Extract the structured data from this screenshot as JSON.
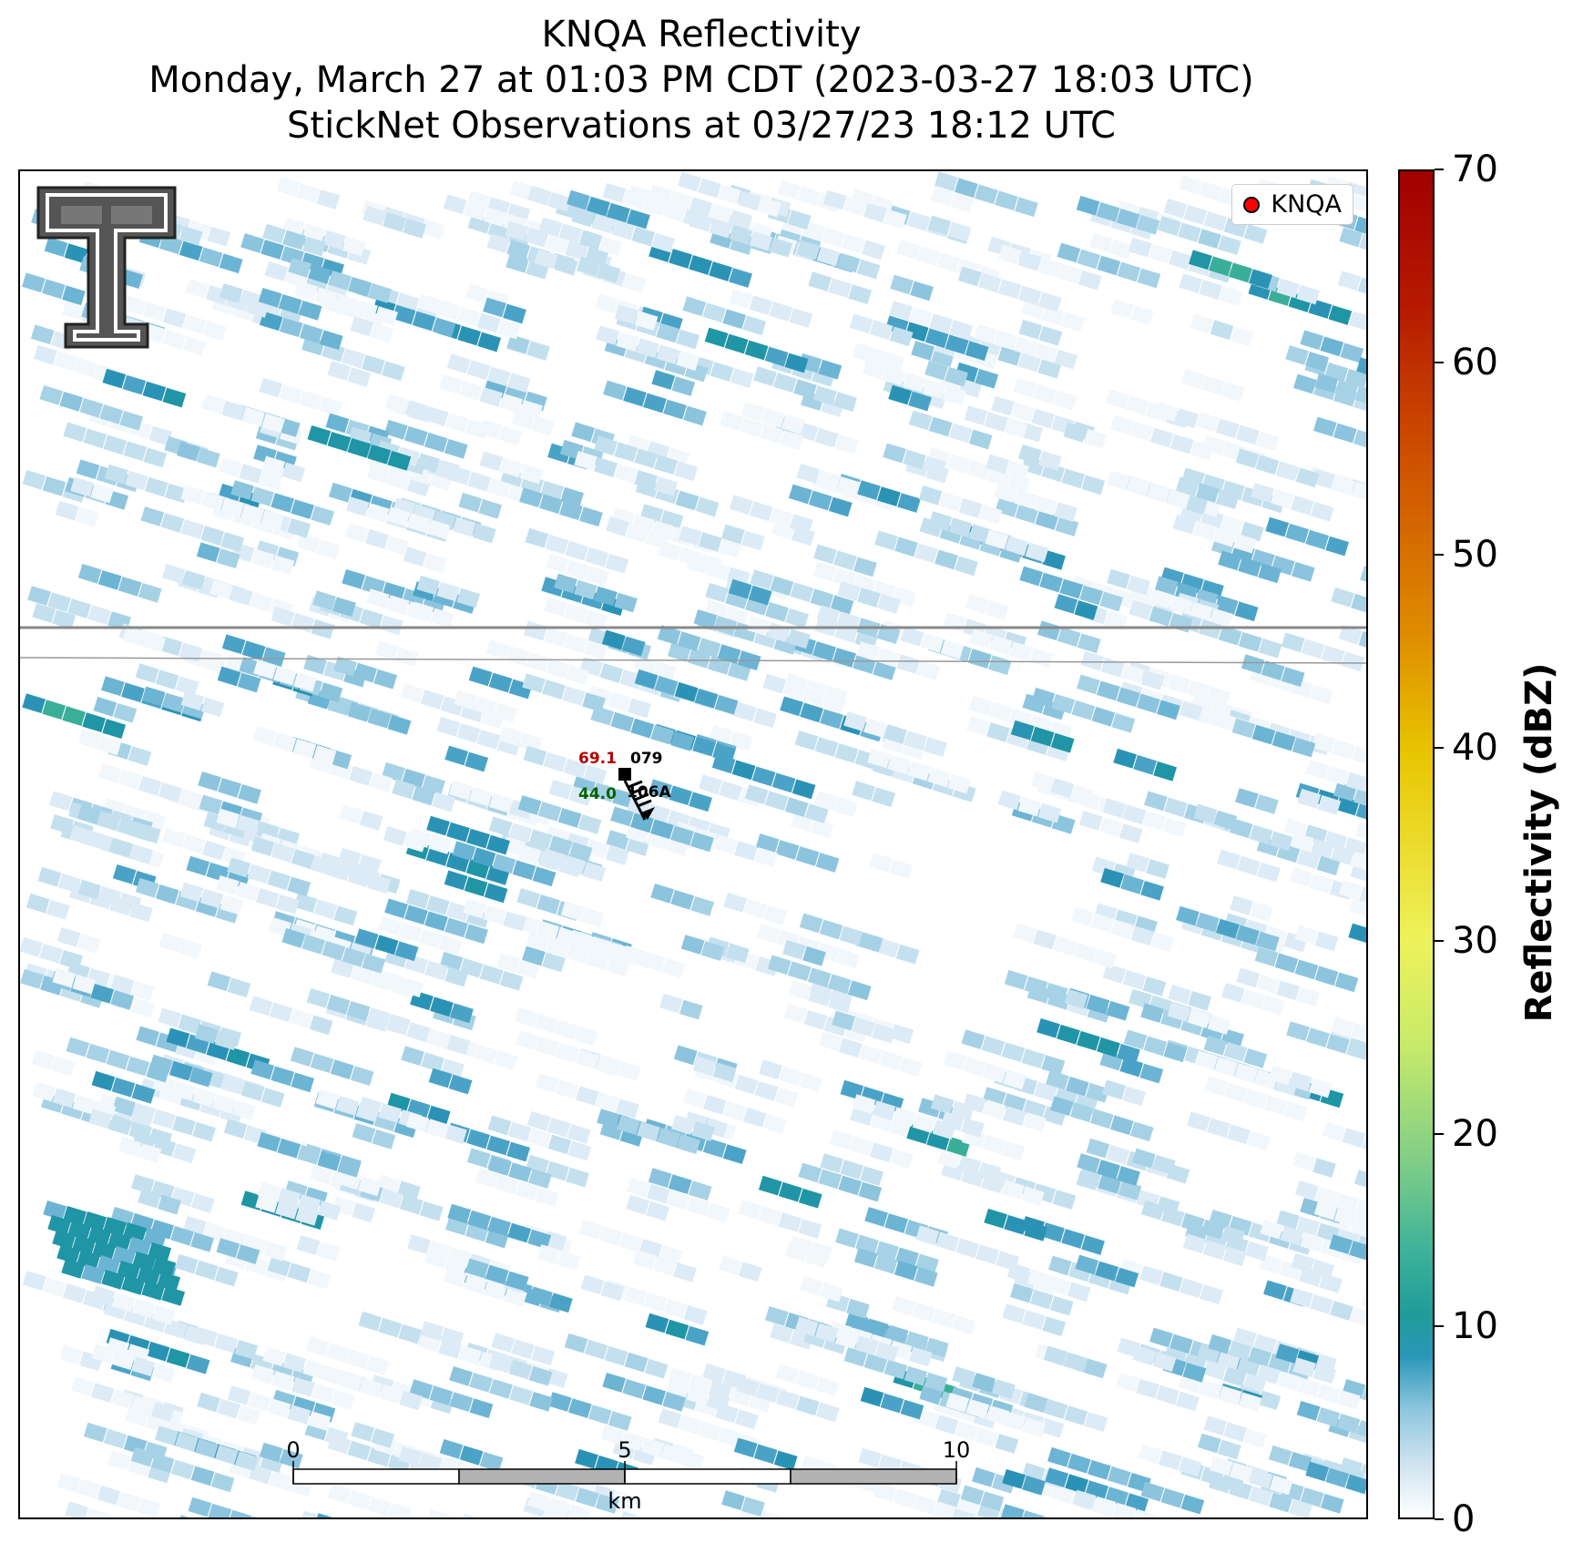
{
  "title": {
    "line1": "KNQA Reflectivity",
    "line2": "Monday, March 27 at 01:03 PM CDT (2023-03-27 18:03 UTC)",
    "line3": "StickNet Observations at 03/27/23 18:12 UTC"
  },
  "legend": {
    "label": "KNQA",
    "marker_color": "#ff0000"
  },
  "station": {
    "temperature": "69.1",
    "dewpoint": "44.0",
    "pressure": "079",
    "station_id": "106A",
    "temperature_color": "#b00000",
    "dewpoint_color": "#006400"
  },
  "scale_bar": {
    "ticks": [
      "0",
      "5",
      "10"
    ],
    "unit": "km"
  },
  "colorbar": {
    "title": "Reflectivity (dBZ)",
    "ticks": [
      "0",
      "10",
      "20",
      "30",
      "40",
      "50",
      "60",
      "70"
    ],
    "range": [
      0,
      70
    ]
  },
  "logo": {
    "icon": "texas-tech-double-t-logo"
  }
}
